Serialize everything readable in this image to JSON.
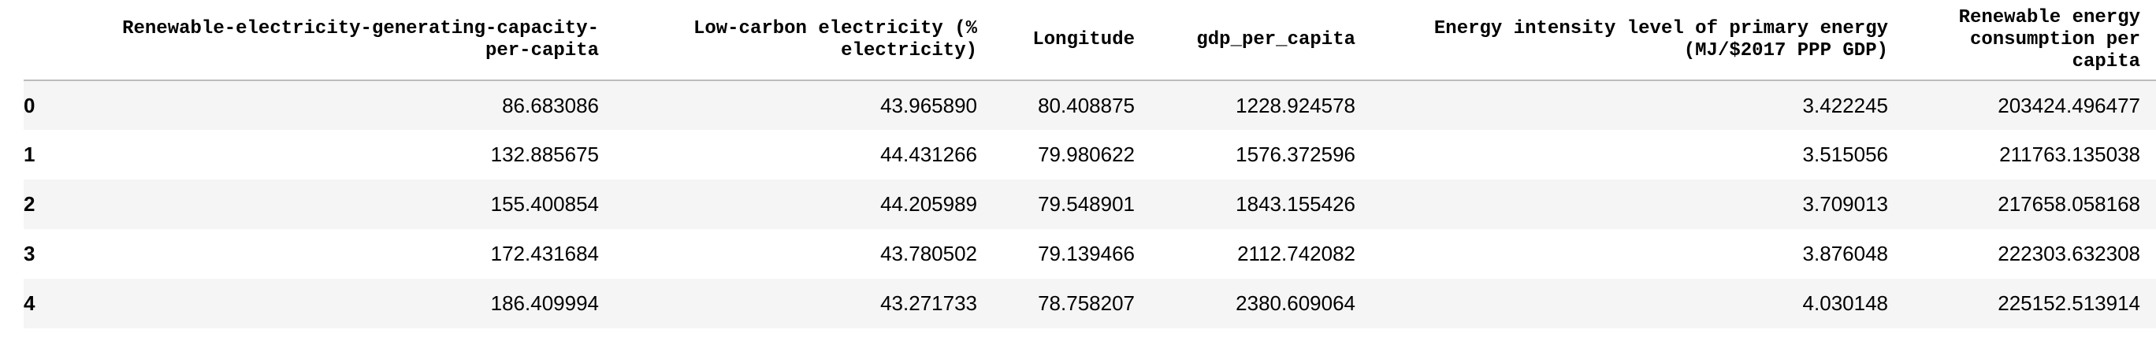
{
  "table": {
    "columns": [
      "",
      "Renewable-electricity-generating-capacity-per-capita",
      "Low-carbon electricity (% electricity)",
      "Longitude",
      "gdp_per_capita",
      "Energy intensity level of primary energy (MJ/$2017 PPP GDP)",
      "Renewable energy consumption per capita"
    ],
    "rows": [
      [
        "0",
        "86.683086",
        "43.965890",
        "80.408875",
        "1228.924578",
        "3.422245",
        "203424.496477"
      ],
      [
        "1",
        "132.885675",
        "44.431266",
        "79.980622",
        "1576.372596",
        "3.515056",
        "211763.135038"
      ],
      [
        "2",
        "155.400854",
        "44.205989",
        "79.548901",
        "1843.155426",
        "3.709013",
        "217658.058168"
      ],
      [
        "3",
        "172.431684",
        "43.780502",
        "79.139466",
        "2112.742082",
        "3.876048",
        "222303.632308"
      ],
      [
        "4",
        "186.409994",
        "43.271733",
        "78.758207",
        "2380.609064",
        "4.030148",
        "225152.513914"
      ]
    ]
  }
}
